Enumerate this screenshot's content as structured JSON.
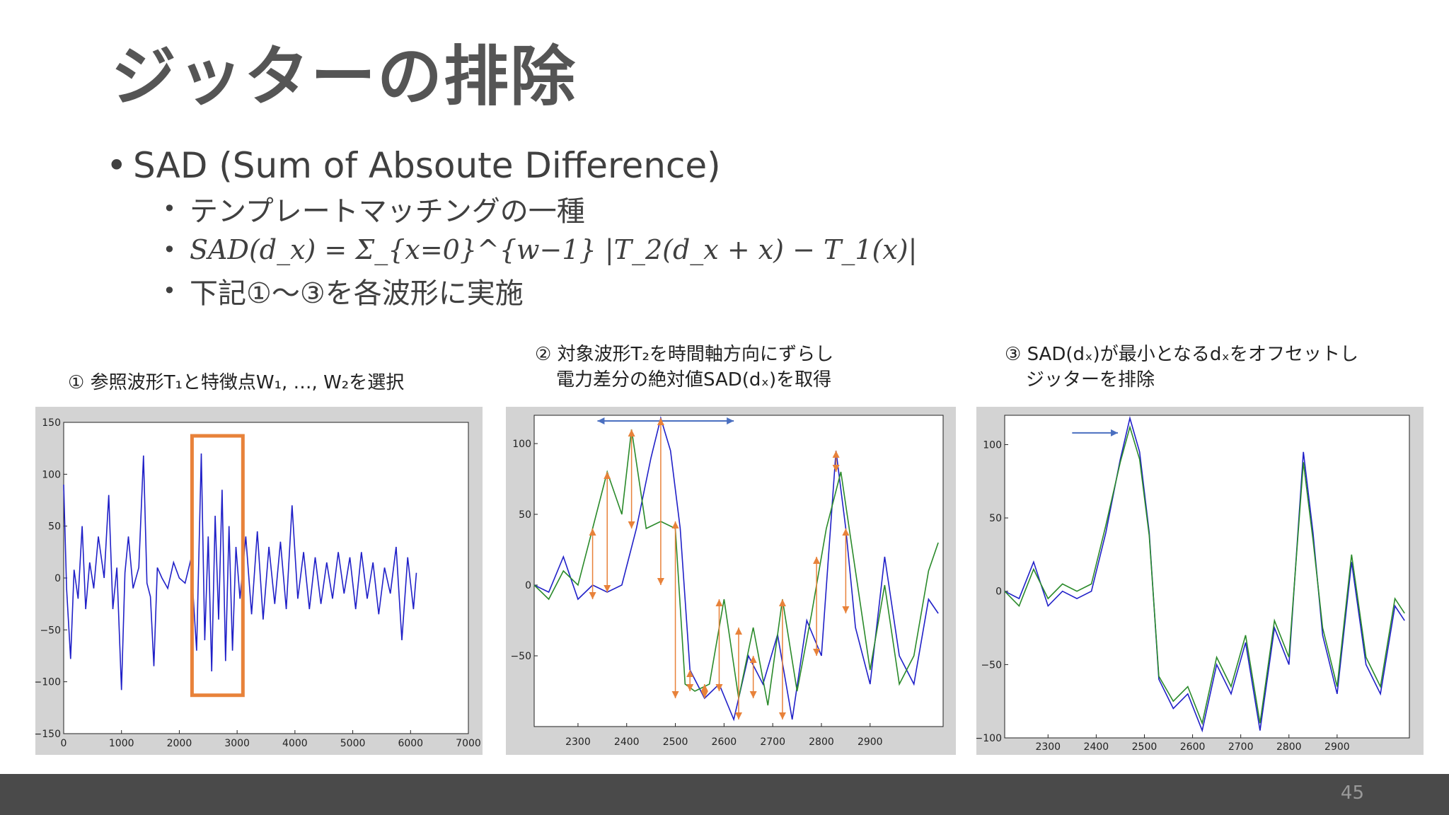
{
  "slide": {
    "title": "ジッターの排除",
    "bullet_main": "SAD (Sum of Absoute Difference)",
    "sub_bullets": [
      "テンプレートマッチングの一種",
      "SAD(d_x) = Σ_{x=0}^{w−1} |T_2(d_x + x) − T_1(x)|",
      "下記①〜③を各波形に実施"
    ],
    "page_number": "45"
  },
  "captions": {
    "c1": "① 参照波形T₁と特徴点W₁, …, W₂を選択",
    "c2_line1": "② 対象波形T₂を時間軸方向にずらし",
    "c2_line2": "電力差分の絶対値SAD(dₓ)を取得",
    "c3_line1": "③ SAD(dₓ)が最小となるdₓをオフセットし",
    "c3_line2": "ジッターを排除"
  },
  "chart_data": [
    {
      "type": "line",
      "xlim": [
        0,
        7000
      ],
      "ylim": [
        -150,
        150
      ],
      "x_ticks": [
        0,
        1000,
        2000,
        3000,
        4000,
        5000,
        6000,
        7000
      ],
      "y_ticks": [
        150,
        100,
        50,
        0,
        -50,
        -100,
        -150
      ],
      "y_tick_labels": [
        "150",
        "100",
        "50",
        "0",
        "−50",
        "−100",
        "−150"
      ],
      "series": [
        {
          "color": "#2020c8",
          "x": [
            0,
            50,
            120,
            180,
            250,
            320,
            380,
            450,
            520,
            600,
            700,
            780,
            850,
            920,
            1000,
            1060,
            1120,
            1200,
            1300,
            1380,
            1440,
            1500,
            1560,
            1620,
            1700,
            1800,
            1900,
            2000,
            2100,
            2200,
            2300,
            2380,
            2440,
            2500,
            2560,
            2620,
            2680,
            2740,
            2800,
            2860,
            2920,
            2980,
            3050,
            3150,
            3250,
            3350,
            3450,
            3550,
            3650,
            3750,
            3850,
            3950,
            4050,
            4150,
            4250,
            4350,
            4450,
            4550,
            4650,
            4750,
            4850,
            4950,
            5050,
            5150,
            5250,
            5350,
            5450,
            5550,
            5650,
            5750,
            5850,
            5950,
            6050,
            6100
          ],
          "y": [
            90,
            -10,
            -78,
            8,
            -20,
            50,
            -30,
            15,
            -10,
            40,
            0,
            80,
            -30,
            10,
            -108,
            5,
            40,
            -10,
            10,
            118,
            -5,
            -18,
            -85,
            10,
            0,
            -10,
            15,
            0,
            -5,
            18,
            -70,
            120,
            -60,
            40,
            -90,
            60,
            -40,
            85,
            -80,
            50,
            -70,
            30,
            -20,
            40,
            -35,
            45,
            -40,
            30,
            -25,
            35,
            -30,
            70,
            -20,
            25,
            -30,
            20,
            -25,
            15,
            -20,
            25,
            -15,
            20,
            -30,
            25,
            -20,
            15,
            -35,
            10,
            -15,
            30,
            -60,
            20,
            -30,
            5
          ]
        }
      ]
    },
    {
      "type": "line",
      "xlim": [
        2210,
        3050
      ],
      "ylim": [
        -100,
        120
      ],
      "x_ticks": [
        2300,
        2400,
        2500,
        2600,
        2700,
        2800,
        2900
      ],
      "y_ticks": [
        100,
        50,
        0,
        -50
      ],
      "y_tick_labels": [
        "100",
        "50",
        "0",
        "−50"
      ],
      "series": [
        {
          "color": "#2020c8",
          "x": [
            2210,
            2240,
            2270,
            2300,
            2330,
            2360,
            2390,
            2420,
            2450,
            2470,
            2490,
            2510,
            2530,
            2560,
            2590,
            2620,
            2650,
            2680,
            2710,
            2740,
            2770,
            2800,
            2830,
            2850,
            2870,
            2900,
            2930,
            2960,
            2990,
            3020,
            3040
          ],
          "y": [
            0,
            -5,
            20,
            -10,
            0,
            -5,
            0,
            40,
            90,
            118,
            95,
            40,
            -60,
            -80,
            -70,
            -95,
            -50,
            -70,
            -35,
            -95,
            -25,
            -50,
            95,
            40,
            -30,
            -70,
            20,
            -50,
            -70,
            -10,
            -20
          ]
        },
        {
          "color": "#2a8a2a",
          "x": [
            2210,
            2240,
            2270,
            2300,
            2330,
            2360,
            2390,
            2410,
            2440,
            2470,
            2500,
            2520,
            2540,
            2570,
            2600,
            2630,
            2660,
            2690,
            2720,
            2750,
            2780,
            2810,
            2840,
            2870,
            2900,
            2930,
            2960,
            2990,
            3020,
            3040
          ],
          "y": [
            0,
            -10,
            10,
            0,
            40,
            80,
            50,
            110,
            40,
            45,
            40,
            -70,
            -75,
            -70,
            -10,
            -80,
            -30,
            -85,
            -10,
            -75,
            -20,
            40,
            80,
            10,
            -60,
            0,
            -70,
            -50,
            10,
            30
          ]
        }
      ]
    },
    {
      "type": "line",
      "xlim": [
        2210,
        3050
      ],
      "ylim": [
        -100,
        120
      ],
      "x_ticks": [
        2300,
        2400,
        2500,
        2600,
        2700,
        2800,
        2900
      ],
      "y_ticks": [
        100,
        50,
        0,
        -50,
        -100
      ],
      "y_tick_labels": [
        "100",
        "50",
        "0",
        "−50",
        "−100"
      ],
      "series": [
        {
          "color": "#2020c8",
          "x": [
            2210,
            2240,
            2270,
            2300,
            2330,
            2360,
            2390,
            2420,
            2450,
            2470,
            2490,
            2510,
            2530,
            2560,
            2590,
            2620,
            2650,
            2680,
            2710,
            2740,
            2770,
            2800,
            2830,
            2850,
            2870,
            2900,
            2930,
            2960,
            2990,
            3020,
            3040
          ],
          "y": [
            0,
            -5,
            20,
            -10,
            0,
            -5,
            0,
            40,
            90,
            118,
            95,
            40,
            -60,
            -80,
            -70,
            -95,
            -50,
            -70,
            -35,
            -95,
            -25,
            -50,
            95,
            40,
            -30,
            -70,
            20,
            -50,
            -70,
            -10,
            -20
          ]
        },
        {
          "color": "#2a8a2a",
          "x": [
            2210,
            2240,
            2270,
            2300,
            2330,
            2360,
            2390,
            2420,
            2450,
            2470,
            2490,
            2510,
            2530,
            2560,
            2590,
            2620,
            2650,
            2680,
            2710,
            2740,
            2770,
            2800,
            2830,
            2850,
            2870,
            2900,
            2930,
            2960,
            2990,
            3020,
            3040
          ],
          "y": [
            0,
            -10,
            15,
            -5,
            5,
            0,
            5,
            45,
            88,
            112,
            90,
            38,
            -58,
            -75,
            -65,
            -90,
            -45,
            -65,
            -30,
            -90,
            -20,
            -45,
            88,
            35,
            -25,
            -65,
            25,
            -45,
            -65,
            -5,
            -15
          ]
        }
      ]
    }
  ]
}
